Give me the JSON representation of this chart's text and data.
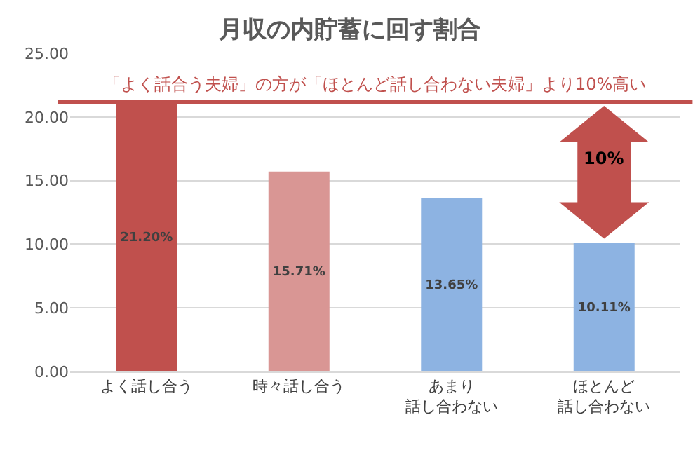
{
  "chart_data": {
    "type": "bar",
    "title": "月収の内貯蓄に回す割合",
    "categories": [
      "よく話し合う",
      "時々話し合う",
      "あまり話し合わない",
      "ほとんど話し合わない"
    ],
    "values": [
      21.2,
      15.71,
      13.65,
      10.11
    ],
    "colors": [
      "#c0504d",
      "#d99694",
      "#8db3e2",
      "#8db3e2"
    ],
    "value_labels": [
      "21.20%",
      "15.71%",
      "13.65%",
      "10.11%"
    ],
    "ylim": [
      0,
      25
    ],
    "yticks": [
      {
        "value": 0,
        "label": "0.00"
      },
      {
        "value": 5,
        "label": "5.00"
      },
      {
        "value": 10,
        "label": "10.00"
      },
      {
        "value": 15,
        "label": "15.00"
      },
      {
        "value": 20,
        "label": "20.00"
      },
      {
        "value": 25,
        "label": "25.00"
      }
    ],
    "grid": "y",
    "legend": false,
    "ref_lines": [
      {
        "axis": "y",
        "value": 21.2,
        "label": "「よく話合う夫婦」の方が「ほとんど話し合わない夫婦」より10%高い",
        "color": "#c0504d"
      }
    ],
    "annotations": [
      "10%"
    ]
  }
}
